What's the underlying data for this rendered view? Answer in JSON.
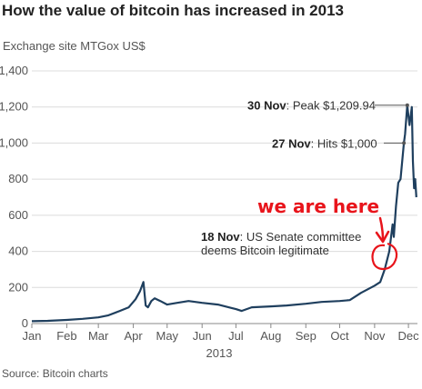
{
  "title": "How the value of bitcoin has increased in 2013",
  "subtitle": "Exchange site MTGox US$",
  "source": "Source: Bitcoin charts",
  "chart_data": {
    "type": "line",
    "xlabel": "2013",
    "x_ticks": [
      "Jan",
      "Feb",
      "Mar",
      "Apr",
      "May",
      "Jun",
      "Jul",
      "Aug",
      "Sep",
      "Oct",
      "Nov",
      "Dec"
    ],
    "y_ticks": [
      "0",
      "200",
      "400",
      "600",
      "800",
      "1,000",
      "1,200",
      "1,400"
    ],
    "ylim": [
      0,
      1400
    ],
    "xlim": [
      "2013-01-01",
      "2013-12-09"
    ],
    "grid": "horizontal",
    "line_color": "#1f3f5e",
    "series": [
      {
        "x": [
          "2013-01-01",
          "2013-01-15",
          "2013-02-01",
          "2013-02-15",
          "2013-03-01",
          "2013-03-10",
          "2013-03-20",
          "2013-03-28",
          "2013-04-03",
          "2013-04-07",
          "2013-04-10",
          "2013-04-12",
          "2013-04-14",
          "2013-04-17",
          "2013-04-20",
          "2013-04-25",
          "2013-05-01",
          "2013-05-10",
          "2013-05-20",
          "2013-06-01",
          "2013-06-15",
          "2013-07-01",
          "2013-07-06",
          "2013-07-15",
          "2013-08-01",
          "2013-08-15",
          "2013-09-01",
          "2013-09-15",
          "2013-10-01",
          "2013-10-10",
          "2013-10-20",
          "2013-11-01",
          "2013-11-06",
          "2013-11-10",
          "2013-11-14",
          "2013-11-17",
          "2013-11-18",
          "2013-11-20",
          "2013-11-22",
          "2013-11-24",
          "2013-11-27",
          "2013-11-28",
          "2013-11-30",
          "2013-12-01",
          "2013-12-02",
          "2013-12-04",
          "2013-12-05",
          "2013-12-06",
          "2013-12-07",
          "2013-12-08"
        ],
        "y": [
          13,
          15,
          20,
          26,
          34,
          46,
          70,
          90,
          135,
          180,
          230,
          100,
          90,
          125,
          140,
          125,
          105,
          115,
          125,
          115,
          105,
          80,
          70,
          90,
          95,
          100,
          110,
          120,
          125,
          130,
          170,
          210,
          230,
          300,
          400,
          550,
          480,
          650,
          780,
          800,
          1000,
          1050,
          1210,
          1150,
          1100,
          1200,
          900,
          750,
          800,
          700
        ]
      }
    ],
    "annotations": [
      {
        "date": "30 Nov",
        "text": ": Peak $1,209.94"
      },
      {
        "date": "27 Nov",
        "text": ": Hits $1,000"
      },
      {
        "date": "18 Nov",
        "text": ": US Senate committee",
        "text2": "deems Bitcoin legitimate"
      }
    ],
    "handwritten_note": "we are here"
  }
}
